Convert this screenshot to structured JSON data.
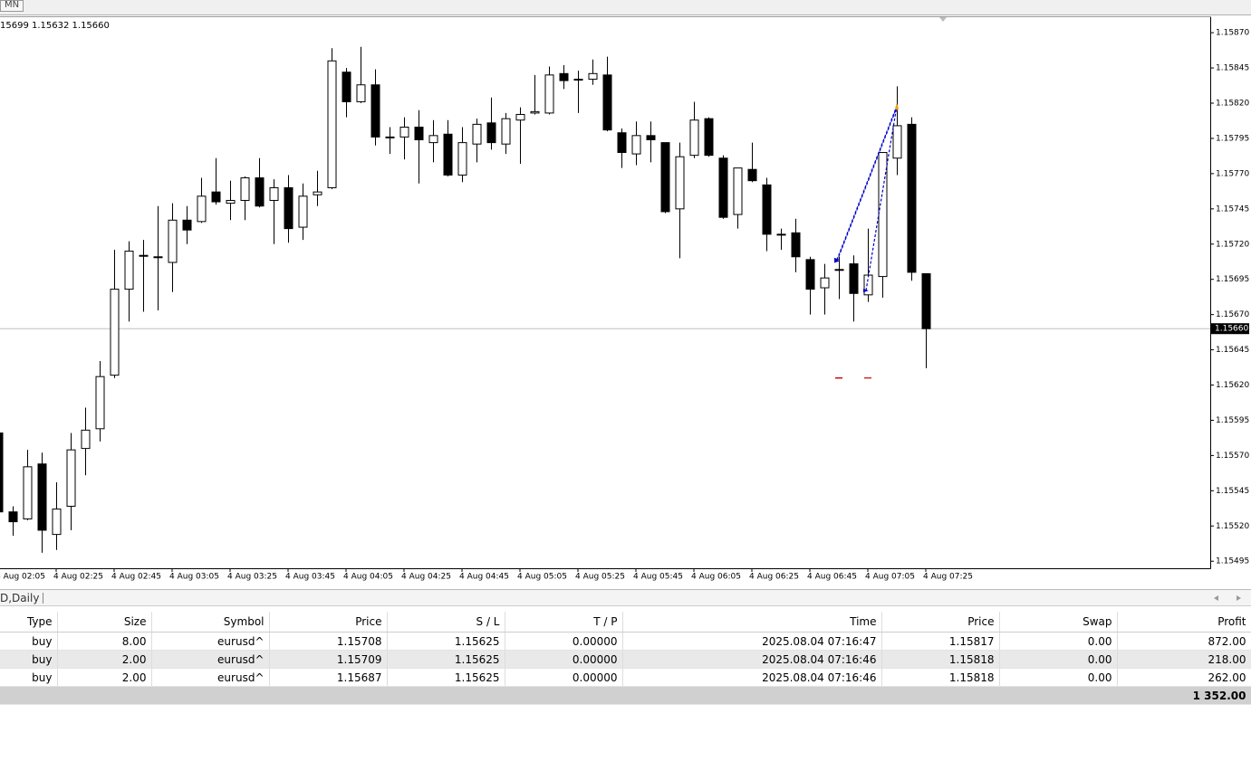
{
  "toolbar": {
    "period": "MN"
  },
  "chart_data": {
    "type": "candlestick",
    "info": "15699 1.15632 1.15660",
    "categories": [
      "4 Aug 02:05",
      null,
      null,
      null,
      "4 Aug 02:25",
      null,
      null,
      null,
      "4 Aug 02:45",
      null,
      null,
      null,
      "4 Aug 03:05",
      null,
      null,
      null,
      "4 Aug 03:25",
      null,
      null,
      null,
      "4 Aug 03:45",
      null,
      null,
      null,
      "4 Aug 04:05",
      null,
      null,
      null,
      "4 Aug 04:25",
      null,
      null,
      null,
      "4 Aug 04:45",
      null,
      null,
      null,
      "4 Aug 05:05",
      null,
      null,
      null,
      "4 Aug 05:25",
      null,
      null,
      null,
      "4 Aug 05:45",
      null,
      null,
      null,
      "4 Aug 06:05",
      null,
      null,
      null,
      "4 Aug 06:25",
      null,
      null,
      null,
      "4 Aug 06:45",
      null,
      null,
      null,
      "4 Aug 07:05",
      null,
      null,
      null,
      "4 Aug 07:25"
    ],
    "open": [
      1.15586,
      1.1553,
      1.15525,
      1.15564,
      1.15514,
      1.15534,
      1.15575,
      1.15589,
      1.15627,
      1.15688,
      1.15712,
      1.15711,
      1.15707,
      1.15737,
      1.15736,
      1.15757,
      1.15749,
      1.15751,
      1.15767,
      1.15751,
      1.1576,
      1.15732,
      1.15755,
      1.1576,
      1.15842,
      1.15821,
      1.15833,
      1.15796,
      1.15796,
      1.15803,
      1.15792,
      1.15798,
      1.15769,
      1.15791,
      1.15806,
      1.15791,
      1.15808,
      1.15813,
      1.15813,
      1.15841,
      1.15837,
      1.15837,
      1.1584,
      1.15799,
      1.15784,
      1.15797,
      1.15792,
      1.15745,
      1.15783,
      1.15809,
      1.15781,
      1.15741,
      1.15773,
      1.15762,
      1.15727,
      1.15728,
      1.15709,
      1.15689,
      1.15702,
      1.15706,
      1.15684,
      1.15697,
      1.15781,
      1.15805,
      1.15699
    ],
    "high": [
      1.15586,
      1.15534,
      1.15574,
      1.15572,
      1.15551,
      1.15586,
      1.15604,
      1.15637,
      1.15716,
      1.15722,
      1.15723,
      1.15747,
      1.15749,
      1.15747,
      1.15767,
      1.15781,
      1.15765,
      1.15768,
      1.15781,
      1.15766,
      1.15769,
      1.15763,
      1.15772,
      1.15859,
      1.15845,
      1.1586,
      1.15844,
      1.15803,
      1.1581,
      1.15815,
      1.15808,
      1.15808,
      1.15803,
      1.15809,
      1.15824,
      1.15813,
      1.15817,
      1.1584,
      1.15846,
      1.15847,
      1.15843,
      1.15851,
      1.15853,
      1.15802,
      1.15807,
      1.15807,
      1.15792,
      1.15792,
      1.15821,
      1.1581,
      1.15783,
      1.15774,
      1.15792,
      1.15767,
      1.15731,
      1.15738,
      1.15711,
      1.15706,
      1.15711,
      1.15712,
      1.15731,
      1.15785,
      1.15832,
      1.1581,
      1.15699
    ],
    "low": [
      1.1553,
      1.15513,
      1.15524,
      1.15501,
      1.15503,
      1.15517,
      1.15556,
      1.1558,
      1.15625,
      1.15665,
      1.15672,
      1.15673,
      1.15686,
      1.1572,
      1.15735,
      1.15748,
      1.15737,
      1.15737,
      1.15746,
      1.1572,
      1.15721,
      1.15723,
      1.15747,
      1.15759,
      1.1581,
      1.1582,
      1.1579,
      1.15784,
      1.1578,
      1.15763,
      1.15778,
      1.15768,
      1.15764,
      1.15778,
      1.15787,
      1.15784,
      1.15777,
      1.15812,
      1.15812,
      1.1583,
      1.15813,
      1.15833,
      1.158,
      1.15774,
      1.15776,
      1.15778,
      1.15742,
      1.1571,
      1.15781,
      1.15782,
      1.15738,
      1.15731,
      1.15764,
      1.15715,
      1.15716,
      1.157,
      1.1567,
      1.1567,
      1.15681,
      1.15665,
      1.15679,
      1.15682,
      1.15769,
      1.15694,
      1.15632
    ],
    "close": [
      1.1553,
      1.15523,
      1.15562,
      1.15517,
      1.15532,
      1.15574,
      1.15588,
      1.15626,
      1.15688,
      1.15715,
      1.15712,
      1.15711,
      1.15737,
      1.1573,
      1.15754,
      1.1575,
      1.15751,
      1.15767,
      1.15747,
      1.1576,
      1.15731,
      1.15754,
      1.15757,
      1.1585,
      1.15821,
      1.15833,
      1.15796,
      1.15796,
      1.15803,
      1.15794,
      1.15797,
      1.15769,
      1.15792,
      1.15805,
      1.15792,
      1.15809,
      1.15812,
      1.15814,
      1.1584,
      1.15836,
      1.15837,
      1.15841,
      1.15801,
      1.15785,
      1.15797,
      1.15794,
      1.15743,
      1.15782,
      1.15808,
      1.15783,
      1.15739,
      1.15774,
      1.15765,
      1.15727,
      1.15727,
      1.15711,
      1.15688,
      1.15696,
      1.15702,
      1.15685,
      1.15698,
      1.15785,
      1.15804,
      1.157,
      1.1566
    ],
    "up_color": "#ffffff",
    "down_color": "#000000",
    "ylim": [
      1.1549,
      1.15881
    ],
    "yticks": [
      {
        "value": 1.1587,
        "label": "1.15870"
      },
      {
        "value": 1.15845,
        "label": "1.15845"
      },
      {
        "value": 1.1582,
        "label": "1.15820"
      },
      {
        "value": 1.15795,
        "label": "1.15795"
      },
      {
        "value": 1.1577,
        "label": "1.15770"
      },
      {
        "value": 1.15745,
        "label": "1.15745"
      },
      {
        "value": 1.1572,
        "label": "1.15720"
      },
      {
        "value": 1.15695,
        "label": "1.15695"
      },
      {
        "value": 1.1567,
        "label": "1.15670"
      },
      {
        "value": 1.15645,
        "label": "1.15645"
      },
      {
        "value": 1.1562,
        "label": "1.15620"
      },
      {
        "value": 1.15595,
        "label": "1.15595"
      },
      {
        "value": 1.1557,
        "label": "1.15570"
      },
      {
        "value": 1.15545,
        "label": "1.15545"
      },
      {
        "value": 1.1552,
        "label": "1.15520"
      },
      {
        "value": 1.15495,
        "label": "1.15495"
      }
    ],
    "current_price": {
      "value": 1.1566,
      "label": "1.15660"
    }
  },
  "tab": "D,Daily",
  "table": {
    "columns": [
      "Type",
      "Size",
      "Symbol",
      "Price",
      "S / L",
      "T / P",
      "Time",
      "Price",
      "Swap",
      "Profit"
    ],
    "rows": [
      [
        "buy",
        "8.00",
        "eurusd^",
        "1.15708",
        "1.15625",
        "0.00000",
        "2025.08.04 07:16:47",
        "1.15817",
        "0.00",
        "872.00"
      ],
      [
        "buy",
        "2.00",
        "eurusd^",
        "1.15709",
        "1.15625",
        "0.00000",
        "2025.08.04 07:16:46",
        "1.15818",
        "0.00",
        "218.00"
      ],
      [
        "buy",
        "2.00",
        "eurusd^",
        "1.15687",
        "1.15625",
        "0.00000",
        "2025.08.04 07:16:46",
        "1.15818",
        "0.00",
        "262.00"
      ]
    ],
    "total": "1 352.00"
  }
}
